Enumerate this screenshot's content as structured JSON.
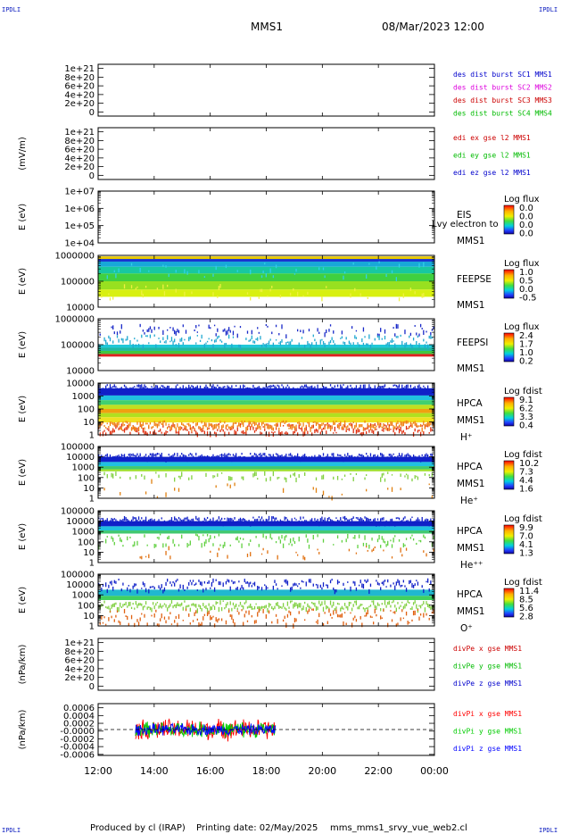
{
  "header": {
    "corner_tl": "IPDLI",
    "corner_tr": "IPDLI",
    "corner_bl": "IPDLI",
    "corner_br": "IPDLI",
    "spacecraft": "MMS1",
    "date": "08/Mar/2023 12:00"
  },
  "footer": {
    "produced_by": "Produced by  cl (IRAP)",
    "printing_date": "Printing date: 02/May/2025",
    "script_name": "mms_mms1_srvy_vue_web2.cl"
  },
  "colors": {
    "frame": "#000000",
    "zero_line": "#000000"
  },
  "chart_data": [
    {
      "id": "des-dist",
      "type": "line",
      "ylabel": "",
      "yticks": [
        "1e+21",
        "8e+20",
        "6e+20",
        "4e+20",
        "2e+20",
        "0"
      ],
      "ylim": [
        0,
        1e+21
      ],
      "zero_dashed": true,
      "series": [
        {
          "name": "des dist burst SC1 MMS1",
          "color": "#0000cc",
          "values": []
        },
        {
          "name": "des dist burst SC2 MMS2",
          "color": "#dd00dd",
          "values": []
        },
        {
          "name": "des dist burst SC3 MMS3",
          "color": "#cc0000",
          "values": []
        },
        {
          "name": "des dist burst SC4 MMS4",
          "color": "#00bb00",
          "values": []
        }
      ]
    },
    {
      "id": "edi-e",
      "type": "line",
      "ylabel": "(mV/m)",
      "yticks": [
        "1e+21",
        "8e+20",
        "6e+20",
        "4e+20",
        "2e+20",
        "0"
      ],
      "ylim": [
        0,
        1e+21
      ],
      "zero_dashed": true,
      "series": [
        {
          "name": "edi ex gse l2 MMS1",
          "color": "#cc0000",
          "values": []
        },
        {
          "name": "edi ey gse l2 MMS1",
          "color": "#00bb00",
          "values": []
        },
        {
          "name": "edi ez gse l2 MMS1",
          "color": "#0000cc",
          "values": []
        }
      ]
    },
    {
      "id": "eis",
      "type": "heatmap",
      "ylabel": "E (eV)",
      "yticks": [
        "1e+07",
        "1e+06",
        "1e+05",
        "1e+04"
      ],
      "log_scale": true,
      "labels": [
        "EIS",
        "MMS1"
      ],
      "overlay_text": "Lvy electron to",
      "colorbar": {
        "title": "Log flux",
        "ticks": [
          "0.0",
          "0.0",
          "0.0",
          "0.0"
        ]
      },
      "bands": []
    },
    {
      "id": "feepse",
      "type": "heatmap",
      "ylabel": "E (eV)",
      "yticks": [
        "1000000",
        "100000",
        "10000"
      ],
      "log_scale": true,
      "labels": [
        "FEEPSE",
        "MMS1"
      ],
      "colorbar": {
        "title": "Log flux",
        "ticks": [
          "1.0",
          "0.5",
          "0.0",
          "-0.5"
        ]
      },
      "bands": [
        {
          "from": 0.02,
          "to": 0.07,
          "color": "#e8c800"
        },
        {
          "from": 0.07,
          "to": 0.12,
          "color": "#1830d0"
        },
        {
          "from": 0.12,
          "to": 0.22,
          "color": "#18a8d8"
        },
        {
          "from": 0.22,
          "to": 0.35,
          "color": "#18c8a0"
        },
        {
          "from": 0.35,
          "to": 0.5,
          "color": "#40d040"
        },
        {
          "from": 0.5,
          "to": 0.66,
          "color": "#98e020"
        },
        {
          "from": 0.66,
          "to": 0.8,
          "color": "#d8f010"
        }
      ],
      "speckle": [
        {
          "from": 0.1,
          "to": 0.42,
          "density": 0.06,
          "color": "#30d0e8"
        },
        {
          "from": 0.55,
          "to": 0.82,
          "density": 0.05,
          "color": "#f0f040"
        }
      ],
      "speckle_span": [
        0.0,
        1.0
      ]
    },
    {
      "id": "feepsi",
      "type": "heatmap",
      "ylabel": "E (eV)",
      "yticks": [
        "1000000",
        "100000",
        "10000"
      ],
      "log_scale": true,
      "labels": [
        "FEEPSI",
        "MMS1"
      ],
      "colorbar": {
        "title": "Log flux",
        "ticks": [
          "2.4",
          "1.7",
          "1.0",
          "0.2"
        ]
      },
      "bands": [
        {
          "from": 0.5,
          "to": 0.56,
          "color": "#20c8d8"
        },
        {
          "from": 0.56,
          "to": 0.62,
          "color": "#20b8a0"
        },
        {
          "from": 0.62,
          "to": 0.68,
          "color": "#40c840"
        },
        {
          "from": 0.68,
          "to": 0.73,
          "color": "#e02020"
        }
      ],
      "speckle": [
        {
          "from": 0.1,
          "to": 0.3,
          "density": 0.1,
          "color": "#1828c8"
        },
        {
          "from": 0.3,
          "to": 0.5,
          "density": 0.18,
          "color": "#20a8d0"
        }
      ],
      "speckle_span": [
        0.0,
        1.0
      ]
    },
    {
      "id": "hpca-h",
      "type": "heatmap",
      "ylabel": "E (eV)",
      "yticks": [
        "10000",
        "1000",
        "100",
        "10",
        "1"
      ],
      "log_scale": true,
      "labels": [
        "HPCA",
        "MMS1",
        "H⁺"
      ],
      "colorbar": {
        "title": "Log fdist",
        "ticks": [
          "9.1",
          "6.2",
          "3.3",
          "0.4"
        ]
      },
      "bands": [
        {
          "from": 0.1,
          "to": 0.24,
          "color": "#1020c8"
        },
        {
          "from": 0.24,
          "to": 0.33,
          "color": "#20c0e0"
        },
        {
          "from": 0.33,
          "to": 0.42,
          "color": "#40d070"
        },
        {
          "from": 0.42,
          "to": 0.5,
          "color": "#c0e020"
        },
        {
          "from": 0.5,
          "to": 0.58,
          "color": "#f0a010"
        },
        {
          "from": 0.58,
          "to": 0.66,
          "color": "#b0e020"
        },
        {
          "from": 0.66,
          "to": 0.76,
          "color": "#f0e020"
        }
      ],
      "speckle": [
        {
          "from": 0.02,
          "to": 0.12,
          "density": 0.35,
          "color": "#1020c8"
        },
        {
          "from": 0.76,
          "to": 0.96,
          "density": 0.3,
          "color": "#e03010"
        },
        {
          "from": 0.72,
          "to": 0.86,
          "density": 0.25,
          "color": "#f08010"
        }
      ],
      "speckle_span": [
        0.0,
        1.0
      ]
    },
    {
      "id": "hpca-he",
      "type": "heatmap",
      "ylabel": "E (eV)",
      "yticks": [
        "100000",
        "10000",
        "1000",
        "100",
        "10",
        "1"
      ],
      "log_scale": true,
      "labels": [
        "HPCA",
        "MMS1",
        "He⁺"
      ],
      "colorbar": {
        "title": "Log fdist",
        "ticks": [
          "10.2",
          "7.3",
          "4.4",
          "1.6"
        ]
      },
      "bands": [
        {
          "from": 0.2,
          "to": 0.3,
          "color": "#1020c8"
        },
        {
          "from": 0.3,
          "to": 0.38,
          "color": "#20c0e0"
        },
        {
          "from": 0.38,
          "to": 0.44,
          "color": "#40c870"
        },
        {
          "from": 0.44,
          "to": 0.48,
          "color": "#a0e030"
        }
      ],
      "speckle": [
        {
          "from": 0.12,
          "to": 0.22,
          "density": 0.3,
          "color": "#1020c8"
        },
        {
          "from": 0.48,
          "to": 0.62,
          "density": 0.08,
          "color": "#80d040"
        },
        {
          "from": 0.62,
          "to": 0.96,
          "density": 0.02,
          "color": "#e08010"
        }
      ],
      "speckle_span": [
        0.0,
        1.0
      ]
    },
    {
      "id": "hpca-hepp",
      "type": "heatmap",
      "ylabel": "E (eV)",
      "yticks": [
        "100000",
        "10000",
        "1000",
        "100",
        "10",
        "1"
      ],
      "log_scale": true,
      "labels": [
        "HPCA",
        "MMS1",
        "He⁺⁺"
      ],
      "colorbar": {
        "title": "Log fdist",
        "ticks": [
          "9.9",
          "7.0",
          "4.1",
          "1.3"
        ]
      },
      "bands": [
        {
          "from": 0.2,
          "to": 0.3,
          "color": "#1020c8"
        },
        {
          "from": 0.3,
          "to": 0.38,
          "color": "#20c0e0"
        },
        {
          "from": 0.38,
          "to": 0.44,
          "color": "#40c870"
        }
      ],
      "speckle": [
        {
          "from": 0.1,
          "to": 0.22,
          "density": 0.35,
          "color": "#1020c8"
        },
        {
          "from": 0.44,
          "to": 0.66,
          "density": 0.12,
          "color": "#60d040"
        },
        {
          "from": 0.66,
          "to": 0.9,
          "density": 0.04,
          "color": "#e07010"
        }
      ],
      "speckle_span": [
        0.0,
        1.0
      ]
    },
    {
      "id": "hpca-o",
      "type": "heatmap",
      "ylabel": "E (eV)",
      "yticks": [
        "100000",
        "10000",
        "1000",
        "100",
        "10",
        "1"
      ],
      "log_scale": true,
      "labels": [
        "HPCA",
        "MMS1",
        "O⁺"
      ],
      "colorbar": {
        "title": "Log fdist",
        "ticks": [
          "11.4",
          "8.5",
          "5.6",
          "2.8"
        ]
      },
      "bands": [
        {
          "from": 0.3,
          "to": 0.42,
          "color": "#20b8d0"
        },
        {
          "from": 0.42,
          "to": 0.5,
          "color": "#40d060"
        }
      ],
      "speckle": [
        {
          "from": 0.08,
          "to": 0.3,
          "density": 0.2,
          "color": "#1020c8"
        },
        {
          "from": 0.5,
          "to": 0.66,
          "density": 0.25,
          "color": "#80d040"
        },
        {
          "from": 0.66,
          "to": 0.96,
          "density": 0.18,
          "color": "#e06010"
        }
      ],
      "speckle_span": [
        0.0,
        1.0
      ]
    },
    {
      "id": "divpe",
      "type": "line",
      "ylabel": "(nPa/km)",
      "yticks": [
        "1e+21",
        "8e+20",
        "6e+20",
        "4e+20",
        "2e+20",
        "0"
      ],
      "ylim": [
        0,
        1e+21
      ],
      "zero_dashed": true,
      "series": [
        {
          "name": "divPe x gse MMS1",
          "color": "#cc0000",
          "values": []
        },
        {
          "name": "divPe y gse MMS1",
          "color": "#00bb00",
          "values": []
        },
        {
          "name": "divPe z gse MMS1",
          "color": "#0000cc",
          "values": []
        }
      ]
    },
    {
      "id": "divpi",
      "type": "line",
      "ylabel": "(nPa/km)",
      "yticks": [
        "0.0006",
        "0.0004",
        "0.0002",
        "-0.0000",
        "-0.0002",
        "-0.0004",
        "-0.0006"
      ],
      "ylim": [
        -0.0006,
        0.0006
      ],
      "zero_dashed": true,
      "noise": {
        "x_start": "13:20",
        "x_end": "18:20",
        "amplitude": 0.0002
      },
      "series": [
        {
          "name": "divPi x gse MMS1",
          "color": "#ff0000",
          "values": []
        },
        {
          "name": "divPi y gse MMS1",
          "color": "#00cc00",
          "values": []
        },
        {
          "name": "divPi z gse MMS1",
          "color": "#0000ff",
          "values": []
        }
      ]
    }
  ],
  "xaxis": {
    "ticks": [
      "12:00",
      "14:00",
      "16:00",
      "18:00",
      "20:00",
      "22:00",
      "00:00"
    ]
  }
}
